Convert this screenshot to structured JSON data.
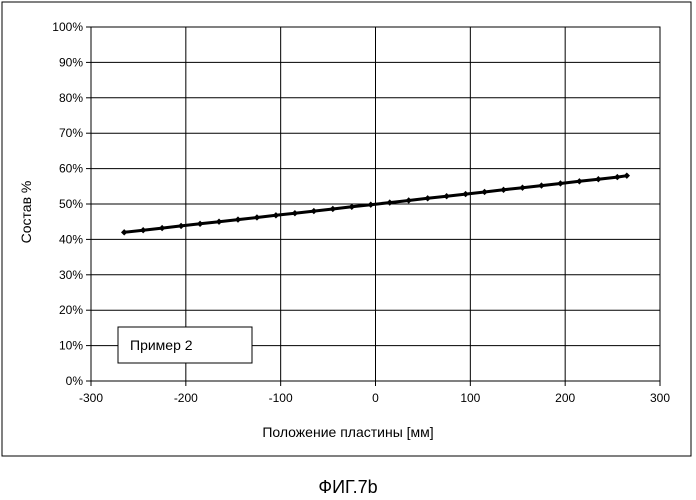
{
  "chart_data": {
    "type": "scatter",
    "title": "",
    "xlabel": "Положение пластины [мм]",
    "ylabel": "Состав %",
    "xlim": [
      -300,
      300
    ],
    "ylim": [
      0,
      100
    ],
    "x_ticks": [
      "-300",
      "-200",
      "-100",
      "0",
      "100",
      "200",
      "300"
    ],
    "y_ticks": [
      "0%",
      "10%",
      "20%",
      "30%",
      "40%",
      "50%",
      "60%",
      "70%",
      "80%",
      "90%",
      "100%"
    ],
    "grid": true,
    "legend_position": "bottom-left",
    "series": [
      {
        "name": "Пример 2",
        "color": "#000000",
        "marker": "diamond",
        "x": [
          -265,
          -245,
          -225,
          -205,
          -185,
          -165,
          -145,
          -125,
          -105,
          -85,
          -65,
          -45,
          -25,
          -5,
          15,
          35,
          55,
          75,
          95,
          115,
          135,
          155,
          175,
          195,
          215,
          235,
          255,
          265
        ],
        "y": [
          42.0,
          42.6,
          43.2,
          43.8,
          44.4,
          45.0,
          45.6,
          46.2,
          46.8,
          47.4,
          48.0,
          48.6,
          49.2,
          49.8,
          50.4,
          51.0,
          51.6,
          52.2,
          52.8,
          53.4,
          54.0,
          54.6,
          55.2,
          55.8,
          56.4,
          57.0,
          57.6,
          58.0
        ]
      }
    ]
  },
  "caption": "ФИГ.7b"
}
